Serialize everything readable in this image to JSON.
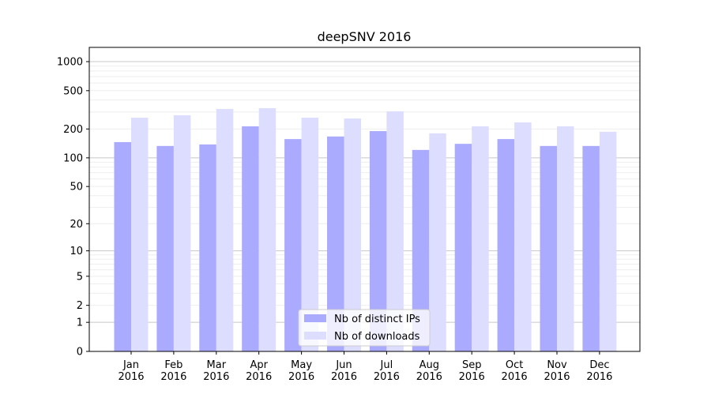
{
  "chart_data": {
    "type": "bar",
    "title": "deepSNV 2016",
    "xlabel": "",
    "ylabel": "",
    "yscale": "symlog (log10(1+y))",
    "ylim": [
      0,
      1300
    ],
    "yticks": [
      0,
      1,
      2,
      5,
      10,
      20,
      50,
      100,
      200,
      500,
      1000
    ],
    "grid": true,
    "legend_position": "bottom-center",
    "categories": [
      "Jan\n2016",
      "Feb\n2016",
      "Mar\n2016",
      "Apr\n2016",
      "May\n2016",
      "Jun\n2016",
      "Jul\n2016",
      "Aug\n2016",
      "Sep\n2016",
      "Oct\n2016",
      "Nov\n2016",
      "Dec\n2016"
    ],
    "series": [
      {
        "name": "Nb of distinct IPs",
        "color": "#aaaaff",
        "values": [
          146,
          133,
          138,
          213,
          157,
          167,
          190,
          121,
          140,
          157,
          133,
          133
        ]
      },
      {
        "name": "Nb of downloads",
        "color": "#ddddff",
        "values": [
          262,
          278,
          323,
          329,
          262,
          257,
          305,
          180,
          213,
          234,
          213,
          187
        ]
      }
    ]
  }
}
